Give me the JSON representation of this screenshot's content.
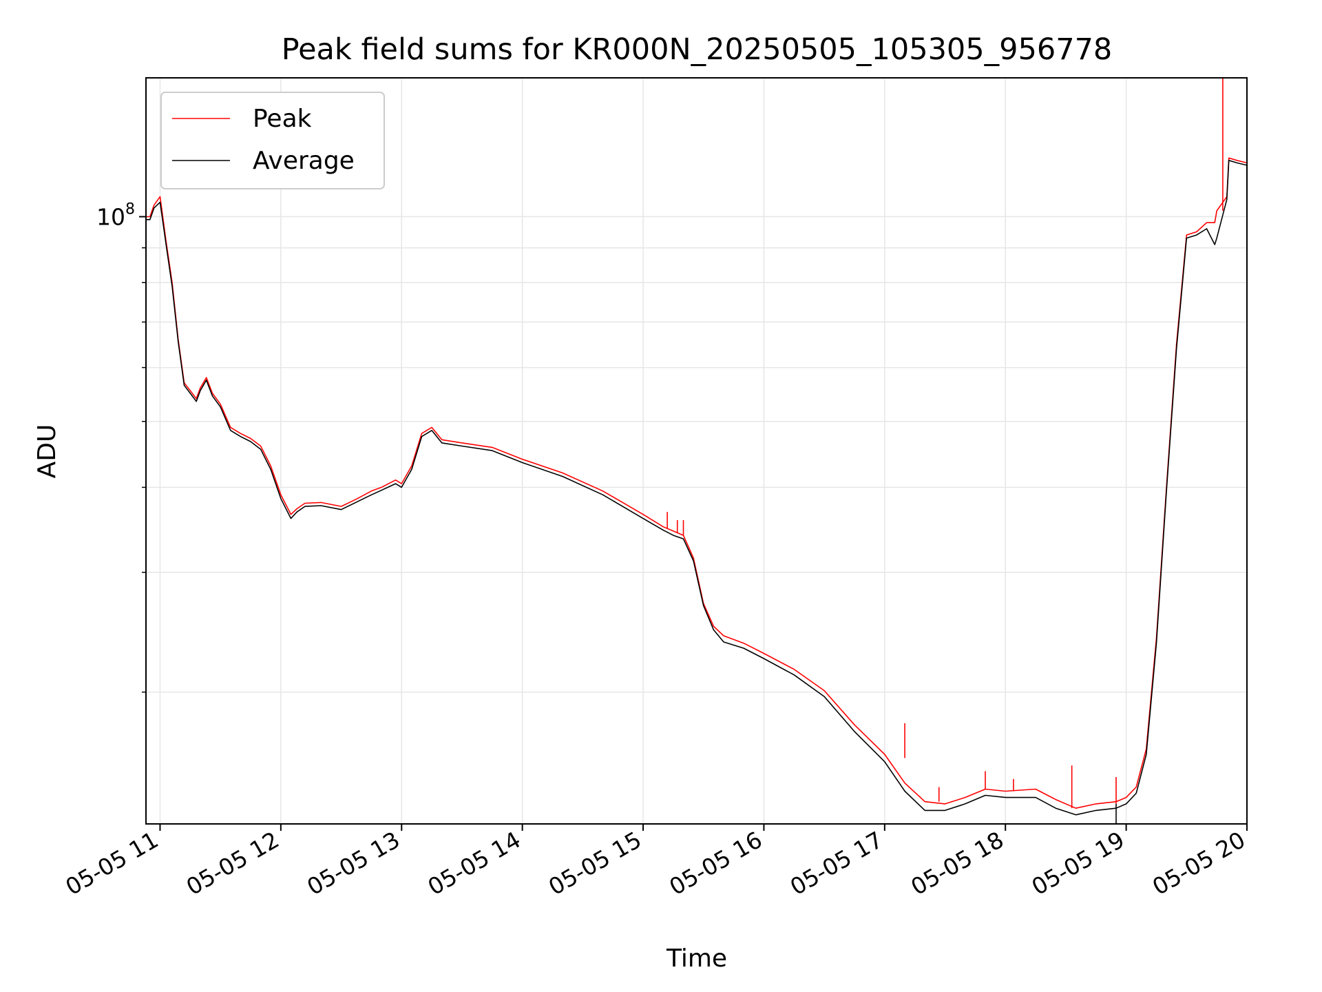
{
  "chart_data": {
    "type": "line",
    "title": "Peak field sums for KR000N_20250505_105305_956778",
    "xlabel": "Time",
    "ylabel": "ADU",
    "yscale": "log",
    "grid": true,
    "legend_position": "top-left",
    "xlim": [
      "2025-05-05 10:53",
      "2025-05-05 20:00"
    ],
    "ylim": [
      12800000,
      160000000
    ],
    "x_ticks": [
      {
        "value": "2025-05-05 11:00",
        "label": "05-05 11"
      },
      {
        "value": "2025-05-05 12:00",
        "label": "05-05 12"
      },
      {
        "value": "2025-05-05 13:00",
        "label": "05-05 13"
      },
      {
        "value": "2025-05-05 14:00",
        "label": "05-05 14"
      },
      {
        "value": "2025-05-05 15:00",
        "label": "05-05 15"
      },
      {
        "value": "2025-05-05 16:00",
        "label": "05-05 16"
      },
      {
        "value": "2025-05-05 17:00",
        "label": "05-05 17"
      },
      {
        "value": "2025-05-05 18:00",
        "label": "05-05 18"
      },
      {
        "value": "2025-05-05 19:00",
        "label": "05-05 19"
      },
      {
        "value": "2025-05-05 20:00",
        "label": "05-05 20"
      }
    ],
    "y_major_ticks": [
      {
        "value": 100000000,
        "base": "10",
        "exponent": "8"
      }
    ],
    "y_minor_ticks": [
      20000000,
      30000000,
      40000000,
      50000000,
      60000000,
      70000000,
      80000000,
      90000000
    ],
    "x": [
      "2025-05-05 10:53",
      "2025-05-05 10:55",
      "2025-05-05 10:57",
      "2025-05-05 11:00",
      "2025-05-05 11:03",
      "2025-05-05 11:06",
      "2025-05-05 11:09",
      "2025-05-05 11:12",
      "2025-05-05 11:15",
      "2025-05-05 11:18",
      "2025-05-05 11:20",
      "2025-05-05 11:23",
      "2025-05-05 11:26",
      "2025-05-05 11:30",
      "2025-05-05 11:35",
      "2025-05-05 11:40",
      "2025-05-05 11:45",
      "2025-05-05 11:50",
      "2025-05-05 11:55",
      "2025-05-05 12:00",
      "2025-05-05 12:05",
      "2025-05-05 12:08",
      "2025-05-05 12:12",
      "2025-05-05 12:20",
      "2025-05-05 12:30",
      "2025-05-05 12:38",
      "2025-05-05 12:45",
      "2025-05-05 12:50",
      "2025-05-05 12:57",
      "2025-05-05 13:00",
      "2025-05-05 13:05",
      "2025-05-05 13:10",
      "2025-05-05 13:15",
      "2025-05-05 13:20",
      "2025-05-05 13:30",
      "2025-05-05 13:45",
      "2025-05-05 14:00",
      "2025-05-05 14:20",
      "2025-05-05 14:40",
      "2025-05-05 15:00",
      "2025-05-05 15:10",
      "2025-05-05 15:15",
      "2025-05-05 15:20",
      "2025-05-05 15:25",
      "2025-05-05 15:30",
      "2025-05-05 15:35",
      "2025-05-05 15:40",
      "2025-05-05 15:50",
      "2025-05-05 16:00",
      "2025-05-05 16:15",
      "2025-05-05 16:30",
      "2025-05-05 16:45",
      "2025-05-05 17:00",
      "2025-05-05 17:10",
      "2025-05-05 17:20",
      "2025-05-05 17:30",
      "2025-05-05 17:40",
      "2025-05-05 17:50",
      "2025-05-05 18:00",
      "2025-05-05 18:15",
      "2025-05-05 18:25",
      "2025-05-05 18:35",
      "2025-05-05 18:45",
      "2025-05-05 18:55",
      "2025-05-05 19:00",
      "2025-05-05 19:05",
      "2025-05-05 19:10",
      "2025-05-05 19:15",
      "2025-05-05 19:20",
      "2025-05-05 19:25",
      "2025-05-05 19:30",
      "2025-05-05 19:35",
      "2025-05-05 19:40",
      "2025-05-05 19:44",
      "2025-05-05 19:45",
      "2025-05-05 19:50",
      "2025-05-05 19:51",
      "2025-05-05 19:55",
      "2025-05-05 20:00"
    ],
    "series": [
      {
        "name": "Peak",
        "color": "#ff0000",
        "values": [
          100000000,
          100000000,
          104000000,
          107000000,
          92000000,
          80000000,
          66000000,
          57000000,
          55500000,
          54000000,
          56000000,
          58000000,
          55000000,
          53000000,
          49000000,
          48000000,
          47200000,
          46000000,
          43000000,
          39000000,
          36500000,
          37200000,
          37900000,
          38000000,
          37500000,
          38500000,
          39500000,
          40000000,
          41000000,
          40500000,
          43000000,
          48000000,
          49000000,
          47000000,
          46500000,
          45800000,
          44000000,
          42000000,
          39500000,
          36500000,
          35000000,
          34500000,
          34000000,
          31500000,
          27000000,
          25000000,
          24200000,
          23600000,
          22800000,
          21600000,
          20100000,
          17900000,
          16200000,
          14700000,
          13800000,
          13700000,
          14000000,
          14400000,
          14300000,
          14400000,
          13900000,
          13500000,
          13700000,
          13800000,
          14000000,
          14500000,
          16500000,
          24000000,
          40000000,
          65000000,
          94000000,
          95000000,
          98000000,
          98000000,
          102000000,
          107000000,
          122000000,
          121000000,
          120000000
        ]
      },
      {
        "name": "Average",
        "color": "#000000",
        "values": [
          99000000,
          99000000,
          103000000,
          105000000,
          91000000,
          79000000,
          65500000,
          56500000,
          55000000,
          53500000,
          55500000,
          57500000,
          54500000,
          52500000,
          48500000,
          47500000,
          46700000,
          45500000,
          42500000,
          38500000,
          36000000,
          36800000,
          37500000,
          37600000,
          37100000,
          38100000,
          39000000,
          39600000,
          40500000,
          40000000,
          42500000,
          47500000,
          48500000,
          46500000,
          46000000,
          45300000,
          43500000,
          41500000,
          39000000,
          36000000,
          34600000,
          34000000,
          33600000,
          31200000,
          26800000,
          24700000,
          23700000,
          23200000,
          22400000,
          21200000,
          19700000,
          17500000,
          15800000,
          14300000,
          13400000,
          13400000,
          13700000,
          14100000,
          14000000,
          14000000,
          13500000,
          13200000,
          13400000,
          13500000,
          13700000,
          14200000,
          16200000,
          23600000,
          39500000,
          64000000,
          93000000,
          94000000,
          96000000,
          91000000,
          93000000,
          106000000,
          121000000,
          120000000,
          119000000
        ]
      }
    ],
    "spikes": [
      {
        "series": "Peak",
        "x": "2025-05-05 15:12",
        "base": 34800000,
        "top": 36800000
      },
      {
        "series": "Peak",
        "x": "2025-05-05 15:17",
        "base": 34300000,
        "top": 35800000
      },
      {
        "series": "Peak",
        "x": "2025-05-05 15:20",
        "base": 34000000,
        "top": 35800000
      },
      {
        "series": "Peak",
        "x": "2025-05-05 17:10",
        "base": 16000000,
        "top": 18000000
      },
      {
        "series": "Peak",
        "x": "2025-05-05 17:27",
        "base": 13800000,
        "top": 14500000
      },
      {
        "series": "Peak",
        "x": "2025-05-05 17:50",
        "base": 14400000,
        "top": 15300000
      },
      {
        "series": "Peak",
        "x": "2025-05-05 18:04",
        "base": 14300000,
        "top": 14900000
      },
      {
        "series": "Peak",
        "x": "2025-05-05 18:33",
        "base": 13500000,
        "top": 15600000
      },
      {
        "series": "Peak",
        "x": "2025-05-05 18:55",
        "base": 13700000,
        "top": 15000000
      },
      {
        "series": "Peak",
        "x": "2025-05-05 19:48",
        "base": 102000000,
        "top": 160000000
      },
      {
        "series": "Average",
        "x": "2025-05-05 18:55",
        "base": 12800000,
        "top": 13700000
      }
    ]
  }
}
